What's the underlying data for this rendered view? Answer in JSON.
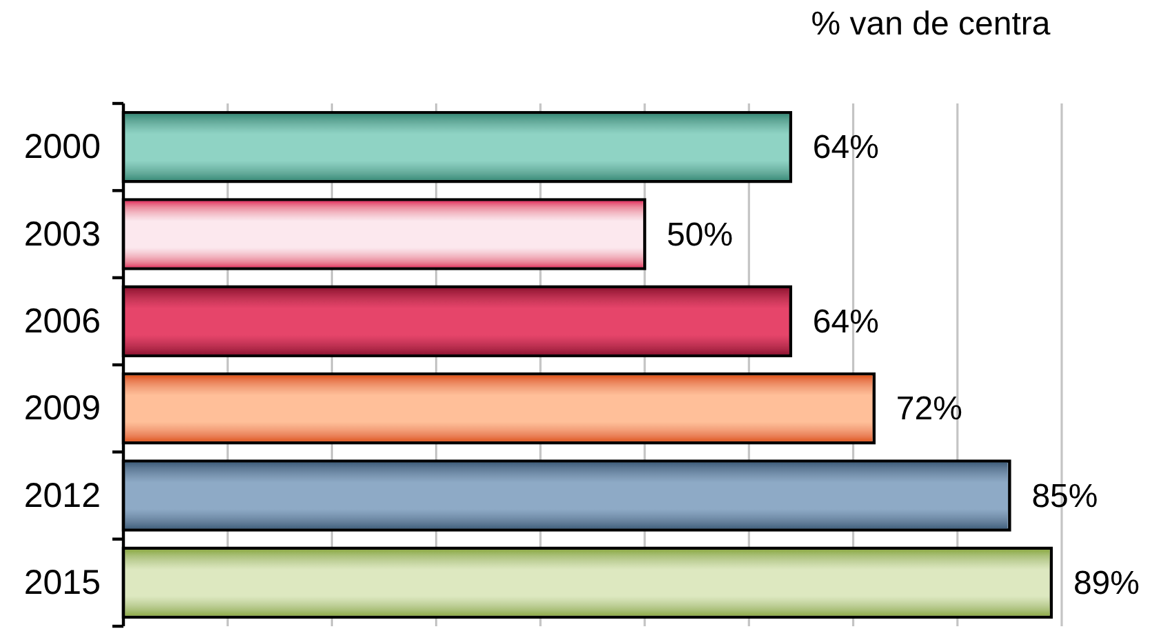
{
  "chart_data": {
    "type": "bar",
    "orientation": "horizontal",
    "xlabel": "% van de centra",
    "categories": [
      "2000",
      "2003",
      "2006",
      "2009",
      "2012",
      "2015"
    ],
    "values": [
      64,
      50,
      64,
      72,
      85,
      89
    ],
    "value_labels": [
      "64%",
      "50%",
      "64%",
      "72%",
      "85%",
      "89%"
    ],
    "colors": [
      "#8fd3c4",
      "#fce8ee",
      "#e6446b",
      "#ffbf99",
      "#8eaac6",
      "#dde8c0"
    ],
    "xlim": [
      0,
      90
    ],
    "xticks": [
      {
        "value": 0,
        "label": null
      },
      {
        "value": 10,
        "label": null
      },
      {
        "value": 20,
        "label": null
      },
      {
        "value": 30,
        "label": null
      },
      {
        "value": 40,
        "label": null
      },
      {
        "value": 50,
        "label": null
      },
      {
        "value": 60,
        "label": null
      },
      {
        "value": 70,
        "label": null
      },
      {
        "value": 80,
        "label": null
      },
      {
        "value": 90,
        "label": null
      }
    ],
    "grid": "x",
    "tick_labels": "y"
  }
}
